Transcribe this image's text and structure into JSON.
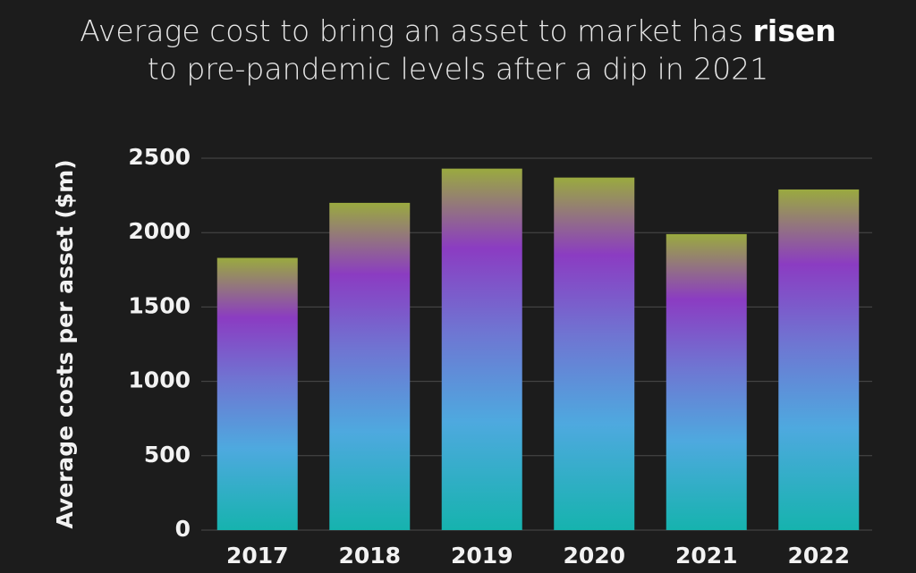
{
  "chart_data": {
    "type": "bar",
    "title": {
      "line1": "Average cost to bring an asset to market has",
      "emphasis": "risen",
      "line2": "to pre-pandemic levels after a dip in 2021"
    },
    "y_label": "Average costs per asset ($m)",
    "categories": [
      "2017",
      "2018",
      "2019",
      "2020",
      "2021",
      "2022"
    ],
    "values": [
      1830,
      2200,
      2430,
      2370,
      1990,
      2290
    ],
    "gradient_colors": [
      "#16b3ae",
      "#4ea9df",
      "#6f75d2",
      "#8b3cc2",
      "#9aaa3f"
    ],
    "ylim": [
      0,
      2500
    ],
    "yticks": [
      0,
      500,
      1000,
      1500,
      2000,
      2500
    ],
    "grid": true
  }
}
